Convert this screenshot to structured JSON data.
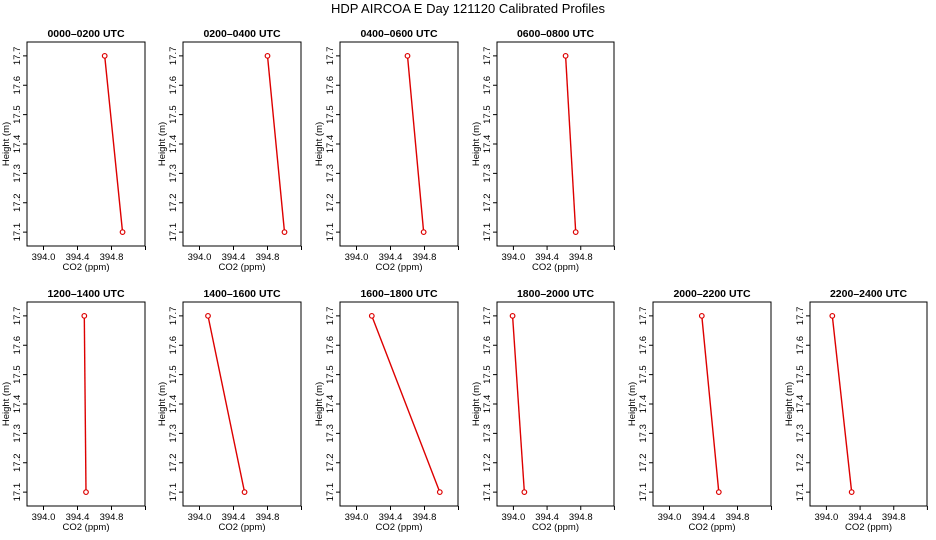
{
  "title": "HDP AIRCOA E  Day 121120  Calibrated Profiles",
  "colors": {
    "series": "#dd0000",
    "frame": "#000000"
  },
  "chart_data": [
    {
      "type": "line",
      "title": "0000–0200 UTC",
      "xlabel": "CO2 (ppm)",
      "ylabel": "Height (m)",
      "xlim": [
        393.9,
        395.1
      ],
      "ylim": [
        17.08,
        17.72
      ],
      "xticks": [
        "394.0",
        "394.4",
        "394.8"
      ],
      "yticks": [
        "17.1",
        "17.2",
        "17.3",
        "17.4",
        "17.5",
        "17.6",
        "17.7"
      ],
      "points": [
        {
          "x": 394.72,
          "y": 17.7
        },
        {
          "x": 394.93,
          "y": 17.1
        }
      ]
    },
    {
      "type": "line",
      "title": "0200–0400 UTC",
      "xlabel": "CO2 (ppm)",
      "ylabel": "Height (m)",
      "xlim": [
        393.9,
        395.1
      ],
      "ylim": [
        17.08,
        17.72
      ],
      "xticks": [
        "394.0",
        "394.4",
        "394.8"
      ],
      "yticks": [
        "17.1",
        "17.2",
        "17.3",
        "17.4",
        "17.5",
        "17.6",
        "17.7"
      ],
      "points": [
        {
          "x": 394.8,
          "y": 17.7
        },
        {
          "x": 395.0,
          "y": 17.1
        }
      ]
    },
    {
      "type": "line",
      "title": "0400–0600 UTC",
      "xlabel": "CO2 (ppm)",
      "ylabel": "Height (m)",
      "xlim": [
        393.9,
        395.1
      ],
      "ylim": [
        17.08,
        17.72
      ],
      "xticks": [
        "394.0",
        "394.4",
        "394.8"
      ],
      "yticks": [
        "17.1",
        "17.2",
        "17.3",
        "17.4",
        "17.5",
        "17.6",
        "17.7"
      ],
      "points": [
        {
          "x": 394.6,
          "y": 17.7
        },
        {
          "x": 394.79,
          "y": 17.1
        }
      ]
    },
    {
      "type": "line",
      "title": "0600–0800 UTC",
      "xlabel": "CO2 (ppm)",
      "ylabel": "Height (m)",
      "xlim": [
        393.9,
        395.1
      ],
      "ylim": [
        17.08,
        17.72
      ],
      "xticks": [
        "394.0",
        "394.4",
        "394.8"
      ],
      "yticks": [
        "17.1",
        "17.2",
        "17.3",
        "17.4",
        "17.5",
        "17.6",
        "17.7"
      ],
      "points": [
        {
          "x": 394.62,
          "y": 17.7
        },
        {
          "x": 394.74,
          "y": 17.1
        }
      ]
    },
    {
      "type": "line",
      "title": "1200–1400 UTC",
      "xlabel": "CO2 (ppm)",
      "ylabel": "Height (m)",
      "xlim": [
        393.9,
        395.1
      ],
      "ylim": [
        17.08,
        17.72
      ],
      "xticks": [
        "394.0",
        "394.4",
        "394.8"
      ],
      "yticks": [
        "17.1",
        "17.2",
        "17.3",
        "17.4",
        "17.5",
        "17.6",
        "17.7"
      ],
      "points": [
        {
          "x": 394.48,
          "y": 17.7
        },
        {
          "x": 394.5,
          "y": 17.1
        }
      ]
    },
    {
      "type": "line",
      "title": "1400–1600 UTC",
      "xlabel": "CO2 (ppm)",
      "ylabel": "Height (m)",
      "xlim": [
        393.9,
        395.1
      ],
      "ylim": [
        17.08,
        17.72
      ],
      "xticks": [
        "394.0",
        "394.4",
        "394.8"
      ],
      "yticks": [
        "17.1",
        "17.2",
        "17.3",
        "17.4",
        "17.5",
        "17.6",
        "17.7"
      ],
      "points": [
        {
          "x": 394.1,
          "y": 17.7
        },
        {
          "x": 394.53,
          "y": 17.1
        }
      ]
    },
    {
      "type": "line",
      "title": "1600–1800 UTC",
      "xlabel": "CO2 (ppm)",
      "ylabel": "Height (m)",
      "xlim": [
        393.9,
        395.1
      ],
      "ylim": [
        17.08,
        17.72
      ],
      "xticks": [
        "394.0",
        "394.4",
        "394.8"
      ],
      "yticks": [
        "17.1",
        "17.2",
        "17.3",
        "17.4",
        "17.5",
        "17.6",
        "17.7"
      ],
      "points": [
        {
          "x": 394.18,
          "y": 17.7
        },
        {
          "x": 394.98,
          "y": 17.1
        }
      ]
    },
    {
      "type": "line",
      "title": "1800–2000 UTC",
      "xlabel": "CO2 (ppm)",
      "ylabel": "Height (m)",
      "xlim": [
        393.9,
        395.1
      ],
      "ylim": [
        17.08,
        17.72
      ],
      "xticks": [
        "394.0",
        "394.4",
        "394.8"
      ],
      "yticks": [
        "17.1",
        "17.2",
        "17.3",
        "17.4",
        "17.5",
        "17.6",
        "17.7"
      ],
      "points": [
        {
          "x": 393.99,
          "y": 17.7
        },
        {
          "x": 394.13,
          "y": 17.1
        }
      ]
    },
    {
      "type": "line",
      "title": "2000–2200 UTC",
      "xlabel": "CO2 (ppm)",
      "ylabel": "Height (m)",
      "xlim": [
        393.9,
        395.1
      ],
      "ylim": [
        17.08,
        17.72
      ],
      "xticks": [
        "394.0",
        "394.4",
        "394.8"
      ],
      "yticks": [
        "17.1",
        "17.2",
        "17.3",
        "17.4",
        "17.5",
        "17.6",
        "17.7"
      ],
      "points": [
        {
          "x": 394.38,
          "y": 17.7
        },
        {
          "x": 394.58,
          "y": 17.1
        }
      ]
    },
    {
      "type": "line",
      "title": "2200–2400 UTC",
      "xlabel": "CO2 (ppm)",
      "ylabel": "Height (m)",
      "xlim": [
        393.9,
        395.1
      ],
      "ylim": [
        17.08,
        17.72
      ],
      "xticks": [
        "394.0",
        "394.4",
        "394.8"
      ],
      "yticks": [
        "17.1",
        "17.2",
        "17.3",
        "17.4",
        "17.5",
        "17.6",
        "17.7"
      ],
      "points": [
        {
          "x": 394.07,
          "y": 17.7
        },
        {
          "x": 394.3,
          "y": 17.1
        }
      ]
    }
  ]
}
